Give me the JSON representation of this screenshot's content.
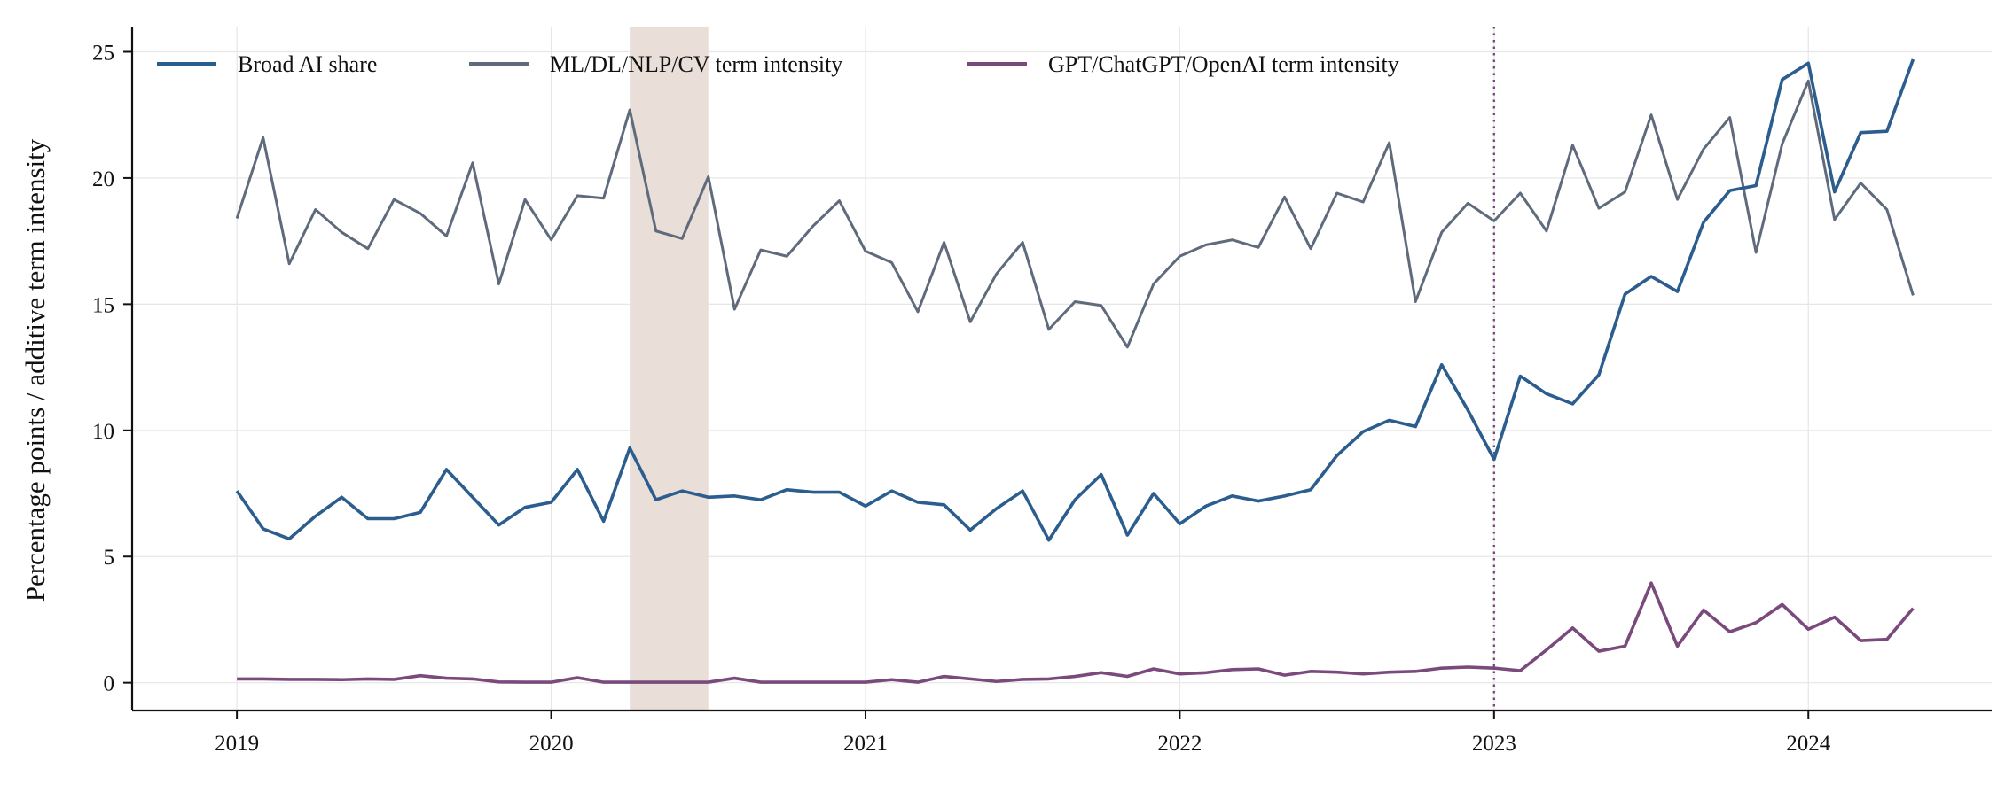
{
  "chart_data": {
    "type": "line",
    "ylabel": "Percentage points / additive term intensity",
    "xlabel": "",
    "title": "",
    "ylim": [
      -1.1,
      26
    ],
    "xlim": [
      "2018-09-01",
      "2024-08-01"
    ],
    "x_ticks": [
      "2019",
      "2020",
      "2021",
      "2022",
      "2023",
      "2024"
    ],
    "y_ticks": [
      "0",
      "5",
      "10",
      "15",
      "20",
      "25"
    ],
    "grid": true,
    "legend_position": "top-left",
    "shaded_region": {
      "start": "2020-04-01",
      "end": "2020-07-01",
      "color": "#e9dfd8"
    },
    "reference_line": {
      "x": "2023-01-01",
      "color": "#7a4a7e"
    },
    "x": [
      "2019-01",
      "2019-02",
      "2019-03",
      "2019-04",
      "2019-05",
      "2019-06",
      "2019-07",
      "2019-08",
      "2019-09",
      "2019-10",
      "2019-11",
      "2019-12",
      "2020-01",
      "2020-02",
      "2020-03",
      "2020-04",
      "2020-05",
      "2020-06",
      "2020-07",
      "2020-08",
      "2020-09",
      "2020-10",
      "2020-11",
      "2020-12",
      "2021-01",
      "2021-02",
      "2021-03",
      "2021-04",
      "2021-05",
      "2021-06",
      "2021-07",
      "2021-08",
      "2021-09",
      "2021-10",
      "2021-11",
      "2021-12",
      "2022-01",
      "2022-02",
      "2022-03",
      "2022-04",
      "2022-05",
      "2022-06",
      "2022-07",
      "2022-08",
      "2022-09",
      "2022-10",
      "2022-11",
      "2022-12",
      "2023-01",
      "2023-02",
      "2023-03",
      "2023-04",
      "2023-05",
      "2023-06",
      "2023-07",
      "2023-08",
      "2023-09",
      "2023-10",
      "2023-11",
      "2023-12",
      "2024-01",
      "2024-02",
      "2024-03",
      "2024-04",
      "2024-05"
    ],
    "series": [
      {
        "name": "Broad AI share",
        "color": "#2b5d8e",
        "values": [
          7.6,
          6.1,
          5.7,
          6.6,
          7.35,
          6.5,
          6.5,
          6.75,
          8.45,
          7.35,
          6.25,
          6.95,
          7.15,
          8.45,
          6.4,
          9.3,
          7.25,
          7.6,
          7.35,
          7.4,
          7.25,
          7.65,
          7.55,
          7.55,
          7.0,
          7.6,
          7.15,
          7.05,
          6.05,
          6.9,
          7.6,
          5.65,
          7.25,
          8.25,
          5.85,
          7.5,
          6.3,
          7.0,
          7.4,
          7.2,
          7.4,
          7.65,
          9.0,
          9.95,
          10.4,
          10.15,
          12.6,
          10.8,
          8.85,
          12.15,
          11.45,
          11.05,
          12.2,
          15.4,
          16.1,
          15.5,
          18.25,
          19.5,
          19.7,
          23.9,
          24.55,
          19.45,
          21.8,
          21.85,
          24.7
        ]
      },
      {
        "name": "ML/DL/NLP/CV term intensity",
        "color": "#5f6b7c",
        "values": [
          18.4,
          21.6,
          16.6,
          18.75,
          17.85,
          17.2,
          19.15,
          18.6,
          17.7,
          20.6,
          15.8,
          19.15,
          17.55,
          19.3,
          19.2,
          22.7,
          17.9,
          17.6,
          20.05,
          14.8,
          17.15,
          16.9,
          18.1,
          19.1,
          17.1,
          16.65,
          14.7,
          17.45,
          14.3,
          16.2,
          17.45,
          14.0,
          15.1,
          14.95,
          13.3,
          15.8,
          16.9,
          17.35,
          17.55,
          17.25,
          19.25,
          17.2,
          19.4,
          19.05,
          21.4,
          15.1,
          17.85,
          19.0,
          18.3,
          19.4,
          17.9,
          21.3,
          18.8,
          19.45,
          22.5,
          19.15,
          21.15,
          22.4,
          17.05,
          21.35,
          23.85,
          18.35,
          19.8,
          18.75,
          15.35
        ]
      },
      {
        "name": "GPT/ChatGPT/OpenAI term intensity",
        "color": "#7b4a7d",
        "values": [
          0.15,
          0.15,
          0.13,
          0.13,
          0.12,
          0.15,
          0.13,
          0.28,
          0.18,
          0.15,
          0.03,
          0.02,
          0.02,
          0.2,
          0.02,
          0.02,
          0.02,
          0.02,
          0.02,
          0.18,
          0.02,
          0.02,
          0.02,
          0.02,
          0.02,
          0.12,
          0.02,
          0.25,
          0.15,
          0.05,
          0.13,
          0.15,
          0.25,
          0.4,
          0.25,
          0.55,
          0.35,
          0.4,
          0.52,
          0.55,
          0.3,
          0.45,
          0.42,
          0.35,
          0.42,
          0.45,
          0.58,
          0.62,
          0.58,
          0.48,
          1.3,
          2.17,
          1.25,
          1.45,
          3.95,
          1.45,
          2.88,
          2.02,
          2.38,
          3.1,
          2.12,
          2.6,
          1.67,
          1.72,
          2.95
        ]
      }
    ]
  }
}
